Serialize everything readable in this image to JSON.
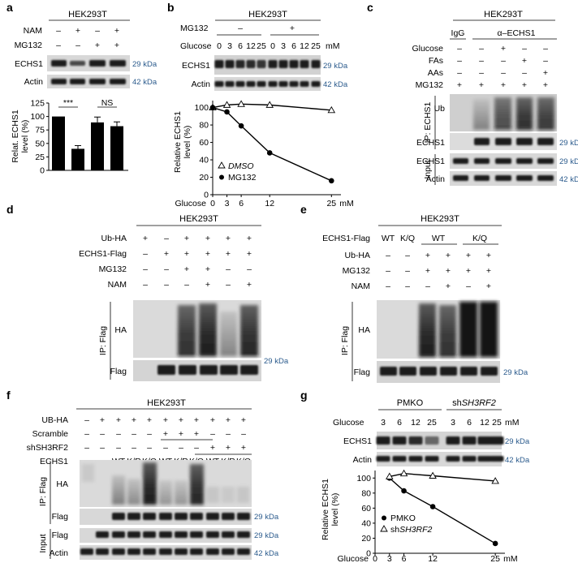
{
  "panels": {
    "a": {
      "label": "a",
      "cell": "HEK293T",
      "rows": [
        {
          "name": "NAM",
          "signs": [
            "–",
            "+",
            "–",
            "+"
          ]
        },
        {
          "name": "MG132",
          "signs": [
            "–",
            "–",
            "+",
            "+"
          ]
        }
      ],
      "blots": [
        {
          "name": "ECHS1",
          "kda": "29 kDa"
        },
        {
          "name": "Actin",
          "kda": "42 kDa"
        }
      ],
      "sig1": "***",
      "sig2": "NS"
    },
    "b": {
      "label": "b",
      "cell": "HEK293T",
      "mg_label": "MG132",
      "mg_minus": "–",
      "mg_plus": "+",
      "glucose_label": "Glucose",
      "glucose_values": [
        "0",
        "3",
        "6",
        "12",
        "25",
        "0",
        "3",
        "6",
        "12",
        "25"
      ],
      "unit": "mM",
      "blots": [
        {
          "name": "ECHS1",
          "kda": "29 kDa"
        },
        {
          "name": "Actin",
          "kda": "42 kDa"
        }
      ],
      "legend_dmso": "DMSO",
      "legend_mg": "MG132"
    },
    "c": {
      "label": "c",
      "cell": "HEK293T",
      "ctrl": "IgG",
      "ab": "α–ECHS1",
      "rows": [
        {
          "name": "Glucose",
          "signs": [
            "–",
            "–",
            "+",
            "–",
            "–"
          ]
        },
        {
          "name": "FAs",
          "signs": [
            "–",
            "–",
            "–",
            "+",
            "–"
          ]
        },
        {
          "name": "AAs",
          "signs": [
            "–",
            "–",
            "–",
            "–",
            "+"
          ]
        },
        {
          "name": "MG132",
          "signs": [
            "+",
            "+",
            "+",
            "+",
            "+"
          ]
        }
      ],
      "ip": "IP: ECHS1",
      "input": "Input",
      "blots": [
        {
          "name": "Ub"
        },
        {
          "name": "ECHS1",
          "kda": "29 kDa"
        },
        {
          "name": "ECHS1",
          "kda": "29 kDa"
        },
        {
          "name": "Actin",
          "kda": "42 kDa"
        }
      ]
    },
    "d": {
      "label": "d",
      "cell": "HEK293T",
      "rows": [
        {
          "name": "Ub-HA",
          "signs": [
            "+",
            "–",
            "+",
            "+",
            "+",
            "+"
          ]
        },
        {
          "name": "ECHS1-Flag",
          "signs": [
            "–",
            "+",
            "+",
            "+",
            "+",
            "+"
          ]
        },
        {
          "name": "MG132",
          "signs": [
            "–",
            "–",
            "+",
            "+",
            "–",
            "–"
          ]
        },
        {
          "name": "NAM",
          "signs": [
            "–",
            "–",
            "–",
            "+",
            "–",
            "+"
          ]
        }
      ],
      "ip": "IP: Flag",
      "blots": [
        {
          "name": "HA"
        },
        {
          "name": "Flag",
          "kda": "29 kDa"
        }
      ]
    },
    "e": {
      "label": "e",
      "cell": "HEK293T",
      "row1": {
        "name": "ECHS1-Flag",
        "signs": [
          "WT",
          "K/Q",
          "WT",
          "K/Q"
        ]
      },
      "rows": [
        {
          "name": "Ub-HA",
          "signs": [
            "–",
            "–",
            "+",
            "+",
            "+",
            "+"
          ]
        },
        {
          "name": "MG132",
          "signs": [
            "–",
            "–",
            "+",
            "+",
            "+",
            "+"
          ]
        },
        {
          "name": "NAM",
          "signs": [
            "–",
            "–",
            "–",
            "+",
            "–",
            "+"
          ]
        }
      ],
      "ip": "IP: Flag",
      "blots": [
        {
          "name": "HA"
        },
        {
          "name": "Flag",
          "kda": "29 kDa"
        }
      ]
    },
    "f": {
      "label": "f",
      "cell": "HEK293T",
      "rows": [
        {
          "name": "UB-HA",
          "signs": [
            "–",
            "+",
            "+",
            "+",
            "+",
            "+",
            "+",
            "+",
            "+",
            "+",
            "+"
          ]
        },
        {
          "name": "Scramble",
          "signs": [
            "–",
            "–",
            "–",
            "–",
            "–",
            "+",
            "+",
            "+",
            "–",
            "–",
            "–"
          ]
        },
        {
          "name": "shSH3RF2",
          "signs": [
            "–",
            "–",
            "–",
            "–",
            "–",
            "–",
            "–",
            "–",
            "+",
            "+",
            "+"
          ]
        },
        {
          "name": "ECHS1",
          "signs": [
            "–",
            "–",
            "WT",
            "K/R",
            "K/Q",
            "WT",
            "K/R",
            "K/Q",
            "WT",
            "K/R",
            "K/Q"
          ]
        }
      ],
      "ip": "IP: Flag",
      "input": "Input",
      "blots": [
        {
          "name": "HA"
        },
        {
          "name": "Flag",
          "kda": "29 kDa"
        },
        {
          "name": "Flag",
          "kda": "29 kDa"
        },
        {
          "name": "Actin",
          "kda": "42 kDa"
        }
      ]
    },
    "g": {
      "label": "g",
      "group1": "PMKO",
      "group2": "shSH3RF2",
      "glucose_label": "Glucose",
      "glucose_values": [
        "3",
        "6",
        "12",
        "25",
        "3",
        "6",
        "12",
        "25"
      ],
      "unit": "mM",
      "blots": [
        {
          "name": "ECHS1",
          "kda": "29 kDa"
        },
        {
          "name": "Actin",
          "kda": "42 kDa"
        }
      ],
      "legend_pmko": "PMKO",
      "legend_sh": "shSH3RF2"
    }
  },
  "chart_data": [
    {
      "type": "bar",
      "panel": "a",
      "ylabel": "Relat. ECHS1 level (%)",
      "yticks": [
        0,
        25,
        50,
        75,
        100,
        125
      ],
      "ylim": [
        0,
        125
      ],
      "values": [
        100,
        40,
        89,
        82
      ],
      "errors": [
        0,
        6,
        10,
        8
      ]
    },
    {
      "type": "line",
      "panel": "b",
      "ylabel": "Relative ECHS1 level (%)",
      "xlabel": "Glucose",
      "unit": "mM",
      "x": [
        0,
        3,
        6,
        12,
        25
      ],
      "xticks": [
        0,
        3,
        6,
        12,
        25
      ],
      "yticks": [
        0,
        20,
        40,
        60,
        80,
        100
      ],
      "ylim": [
        0,
        108
      ],
      "xlim": [
        0,
        27
      ],
      "series": [
        {
          "name": "DMSO",
          "marker": "triangle-open",
          "values": [
            100,
            103,
            104,
            103,
            97
          ]
        },
        {
          "name": "MG132",
          "marker": "circle-filled",
          "values": [
            100,
            95,
            79,
            48,
            16
          ]
        }
      ]
    },
    {
      "type": "line",
      "panel": "g",
      "ylabel": "Relative ECHS1 level (%)",
      "xlabel": "Glucose",
      "unit": "mM",
      "x": [
        3,
        6,
        12,
        25
      ],
      "xticks": [
        0,
        3,
        6,
        12,
        25
      ],
      "yticks": [
        0,
        20,
        40,
        60,
        80,
        100
      ],
      "ylim": [
        0,
        110
      ],
      "xlim": [
        0,
        27
      ],
      "series": [
        {
          "name": "PMKO",
          "marker": "circle-filled",
          "values": [
            100,
            83,
            62,
            13
          ]
        },
        {
          "name": "shSH3RF2",
          "marker": "triangle-open",
          "values": [
            102,
            106,
            103,
            96
          ]
        }
      ]
    }
  ]
}
